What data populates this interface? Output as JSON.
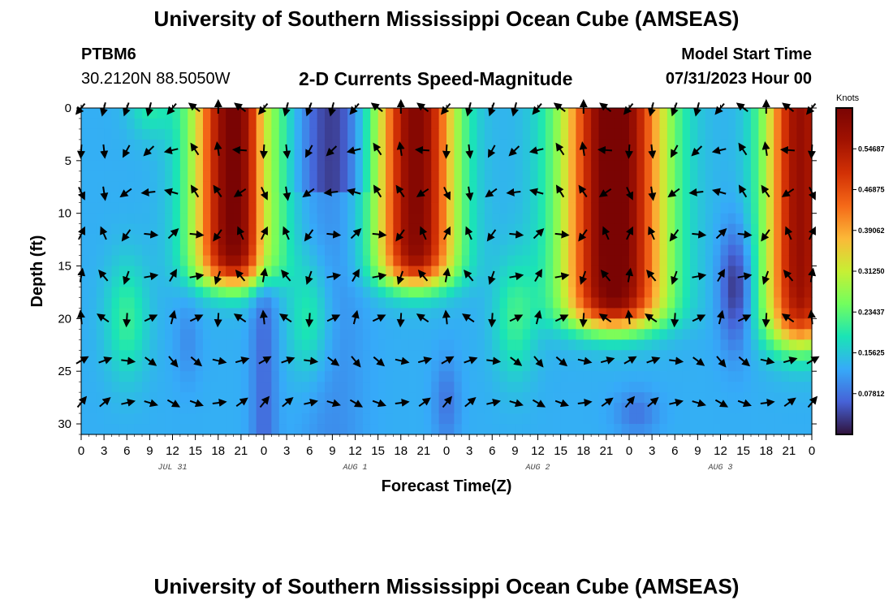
{
  "header": {
    "title": "University of Southern Mississippi Ocean Cube (AMSEAS)",
    "station_id": "PTBM6",
    "coords": "30.2120N  88.5050W",
    "chart_title": "2-D Currents Speed-Magnitude",
    "start_label": "Model Start Time",
    "start_value": "07/31/2023 Hour 00"
  },
  "footer": {
    "title": "University of Southern Mississippi Ocean Cube (AMSEAS)"
  },
  "chart_data": {
    "type": "heatmap",
    "title": "2-D Currents Speed-Magnitude",
    "xlabel": "Forecast Time(Z)",
    "ylabel": "Depth (ft)",
    "x_range_hours": [
      0,
      96
    ],
    "ylim": [
      0,
      31
    ],
    "x_ticks": [
      "0",
      "3",
      "6",
      "9",
      "12",
      "15",
      "18",
      "21",
      "0",
      "3",
      "6",
      "9",
      "12",
      "15",
      "18",
      "21",
      "0",
      "3",
      "6",
      "9",
      "12",
      "15",
      "18",
      "21",
      "0",
      "3",
      "6",
      "9",
      "12",
      "15",
      "18",
      "21",
      "0"
    ],
    "y_ticks": [
      0,
      5,
      10,
      15,
      20,
      25,
      30
    ],
    "date_labels": [
      {
        "label": "JUL 31",
        "hour": 12
      },
      {
        "label": "AUG 1",
        "hour": 36
      },
      {
        "label": "AUG 2",
        "hour": 60
      },
      {
        "label": "AUG 3",
        "hour": 84
      }
    ],
    "colorbar": {
      "unit": "Knots",
      "min": 0.0,
      "max": 0.625,
      "ticks": [
        "0.54687",
        "0.46875",
        "0.39062",
        "0.31250",
        "0.23437",
        "0.15625",
        "0.07812"
      ]
    },
    "vector_depths": [
      0,
      4,
      8,
      12,
      16,
      20,
      24,
      28
    ],
    "vector_hours": [
      0,
      3,
      6,
      9,
      12,
      15,
      18,
      21,
      24,
      27,
      30,
      33,
      36,
      39,
      42,
      45,
      48,
      51,
      54,
      57,
      60,
      63,
      66,
      69,
      72,
      75,
      78,
      81,
      84,
      87,
      90,
      93,
      96
    ],
    "speed_features": [
      {
        "name": "jul31-surface-jet",
        "center_hour": 20,
        "knots": 0.6
      },
      {
        "name": "aug1-surface-jet",
        "center_hour": 44,
        "knots": 0.6
      },
      {
        "name": "aug2-surface-jet",
        "center_hour": 70,
        "knots": 0.62
      },
      {
        "name": "aug3-surface-jet",
        "center_hour": 94,
        "knots": 0.55
      },
      {
        "name": "aug3-slack-core",
        "center_hour": 85,
        "depth_ft": 17,
        "knots": 0.0
      }
    ]
  }
}
